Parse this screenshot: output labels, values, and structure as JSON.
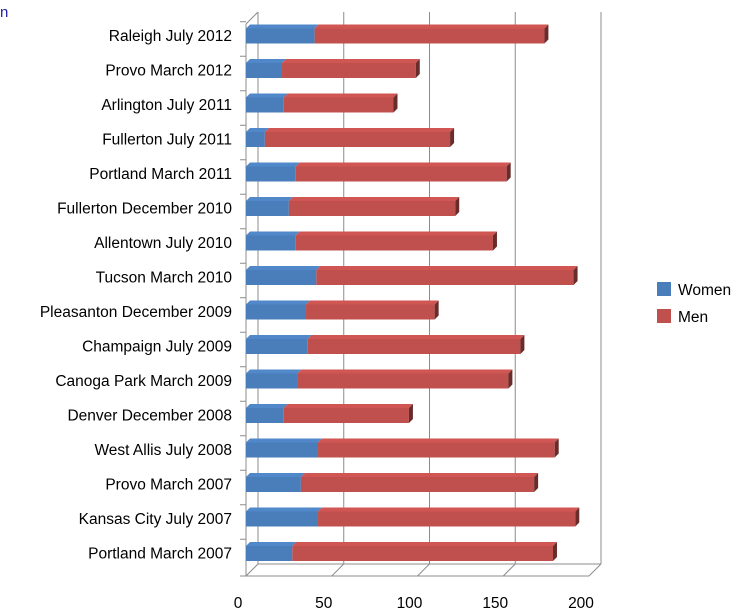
{
  "edge_glyph": "n",
  "chart_data": {
    "type": "bar",
    "orientation": "horizontal",
    "stacked": true,
    "style": "3d",
    "categories": [
      "Raleigh July 2012",
      "Provo March 2012",
      "Arlington July 2011",
      "Fullerton July 2011",
      "Portland March 2011",
      "Fullerton December 2010",
      "Allentown July 2010",
      "Tucson March 2010",
      "Pleasanton December 2009",
      "Champaign July 2009",
      "Canoga Park March 2009",
      "Denver December 2008",
      "West Allis July 2008",
      "Provo March 2007",
      "Kansas City July 2007",
      "Portland March 2007"
    ],
    "series": [
      {
        "name": "Women",
        "color": "#4a7ebb",
        "values": [
          40,
          21,
          22,
          11,
          29,
          25,
          29,
          41,
          35,
          36,
          30,
          22,
          42,
          32,
          42,
          27
        ]
      },
      {
        "name": "Men",
        "color": "#c0504d",
        "values": [
          134,
          78,
          64,
          108,
          123,
          97,
          115,
          150,
          75,
          124,
          123,
          73,
          138,
          136,
          150,
          152
        ]
      }
    ],
    "xlim": [
      0,
      200
    ],
    "xticks": [
      0,
      50,
      100,
      150,
      200
    ],
    "grid": true,
    "legend": "right",
    "title": "",
    "xlabel": "",
    "ylabel": ""
  }
}
